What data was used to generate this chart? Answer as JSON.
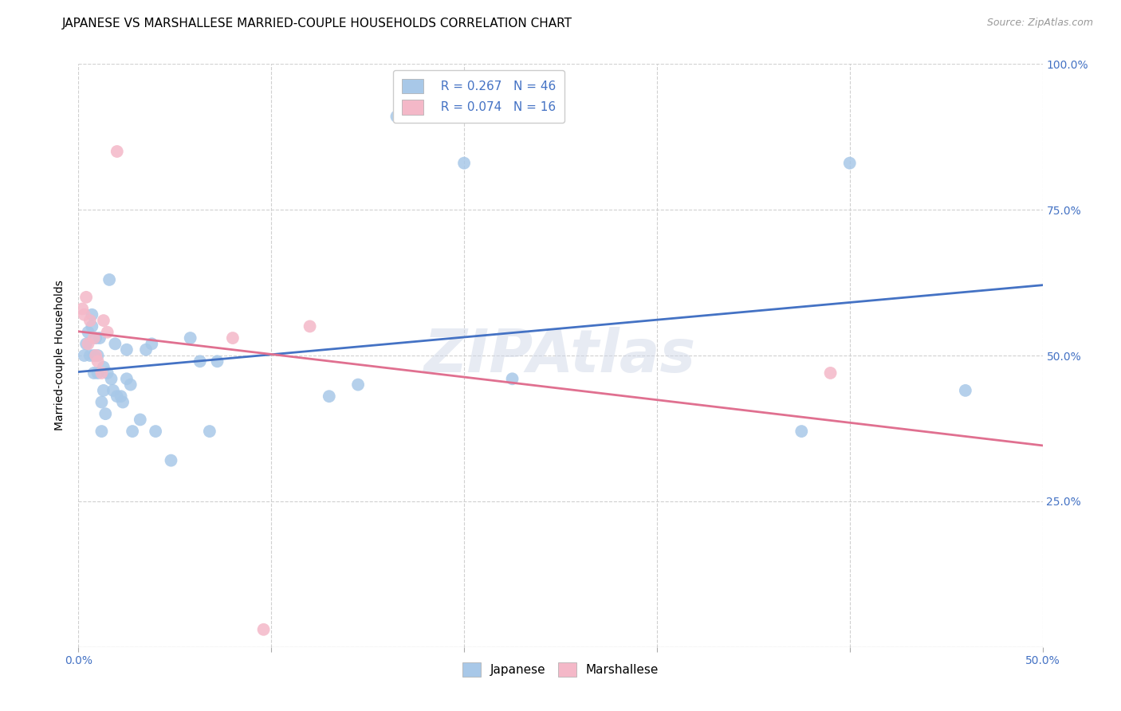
{
  "title": "JAPANESE VS MARSHALLESE MARRIED-COUPLE HOUSEHOLDS CORRELATION CHART",
  "source": "Source: ZipAtlas.com",
  "ylabel_label": "Married-couple Households",
  "xlim": [
    0.0,
    0.5
  ],
  "ylim": [
    0.0,
    1.0
  ],
  "xticks": [
    0.0,
    0.1,
    0.2,
    0.3,
    0.4,
    0.5
  ],
  "xtick_labels": [
    "0.0%",
    "",
    "",
    "",
    "",
    "50.0%"
  ],
  "ytick_positions": [
    0.0,
    0.25,
    0.5,
    0.75,
    1.0
  ],
  "ytick_labels_right": [
    "",
    "25.0%",
    "50.0%",
    "75.0%",
    "100.0%"
  ],
  "grid_color": "#d0d0d0",
  "background_color": "#ffffff",
  "watermark": "ZIPAtlas",
  "legend_R_japanese": "R = 0.267",
  "legend_N_japanese": "N = 46",
  "legend_R_marshallese": "R = 0.074",
  "legend_N_marshallese": "N = 16",
  "japanese_color": "#a8c8e8",
  "marshallese_color": "#f4b8c8",
  "japanese_line_color": "#4472c4",
  "marshallese_line_color": "#e07090",
  "japanese_x": [
    0.003,
    0.004,
    0.005,
    0.006,
    0.007,
    0.007,
    0.008,
    0.008,
    0.009,
    0.01,
    0.01,
    0.011,
    0.012,
    0.012,
    0.013,
    0.013,
    0.014,
    0.015,
    0.016,
    0.017,
    0.018,
    0.019,
    0.02,
    0.022,
    0.023,
    0.025,
    0.025,
    0.027,
    0.028,
    0.032,
    0.035,
    0.038,
    0.04,
    0.048,
    0.058,
    0.063,
    0.068,
    0.072,
    0.13,
    0.145,
    0.165,
    0.2,
    0.225,
    0.375,
    0.4,
    0.46
  ],
  "japanese_y": [
    0.5,
    0.52,
    0.54,
    0.5,
    0.55,
    0.57,
    0.5,
    0.47,
    0.53,
    0.5,
    0.47,
    0.53,
    0.37,
    0.42,
    0.44,
    0.48,
    0.4,
    0.47,
    0.63,
    0.46,
    0.44,
    0.52,
    0.43,
    0.43,
    0.42,
    0.51,
    0.46,
    0.45,
    0.37,
    0.39,
    0.51,
    0.52,
    0.37,
    0.32,
    0.53,
    0.49,
    0.37,
    0.49,
    0.43,
    0.45,
    0.91,
    0.83,
    0.46,
    0.37,
    0.83,
    0.44
  ],
  "marshallese_x": [
    0.002,
    0.003,
    0.004,
    0.005,
    0.006,
    0.008,
    0.009,
    0.01,
    0.012,
    0.013,
    0.015,
    0.02,
    0.08,
    0.096,
    0.12,
    0.39
  ],
  "marshallese_y": [
    0.58,
    0.57,
    0.6,
    0.52,
    0.56,
    0.53,
    0.5,
    0.49,
    0.47,
    0.56,
    0.54,
    0.85,
    0.53,
    0.03,
    0.55,
    0.47
  ],
  "title_fontsize": 11,
  "axis_label_fontsize": 10,
  "tick_fontsize": 10,
  "legend_fontsize": 11,
  "source_fontsize": 9
}
